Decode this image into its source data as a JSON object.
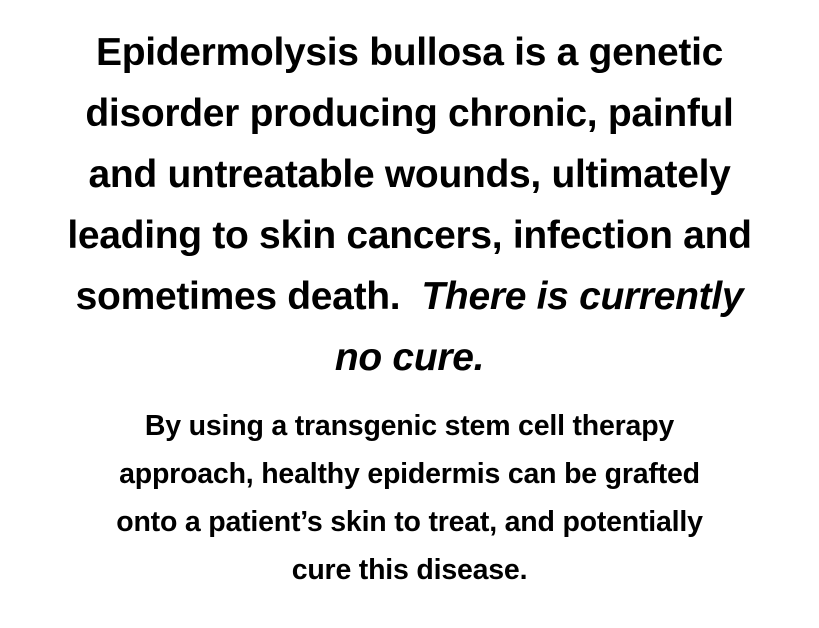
{
  "headline": {
    "lines": [
      "Epidermolysis bullosa is a genetic",
      "disorder producing chronic, painful",
      "and untreatable wounds, ultimately",
      "leading to skin cancers, infection and",
      "sometimes death.",
      "There is currently",
      "no cure."
    ]
  },
  "body": {
    "lines": [
      "By using a transgenic stem cell therapy",
      "approach, healthy epidermis can be grafted",
      "onto a patient’s skin to treat, and potentially",
      "cure this disease."
    ]
  }
}
